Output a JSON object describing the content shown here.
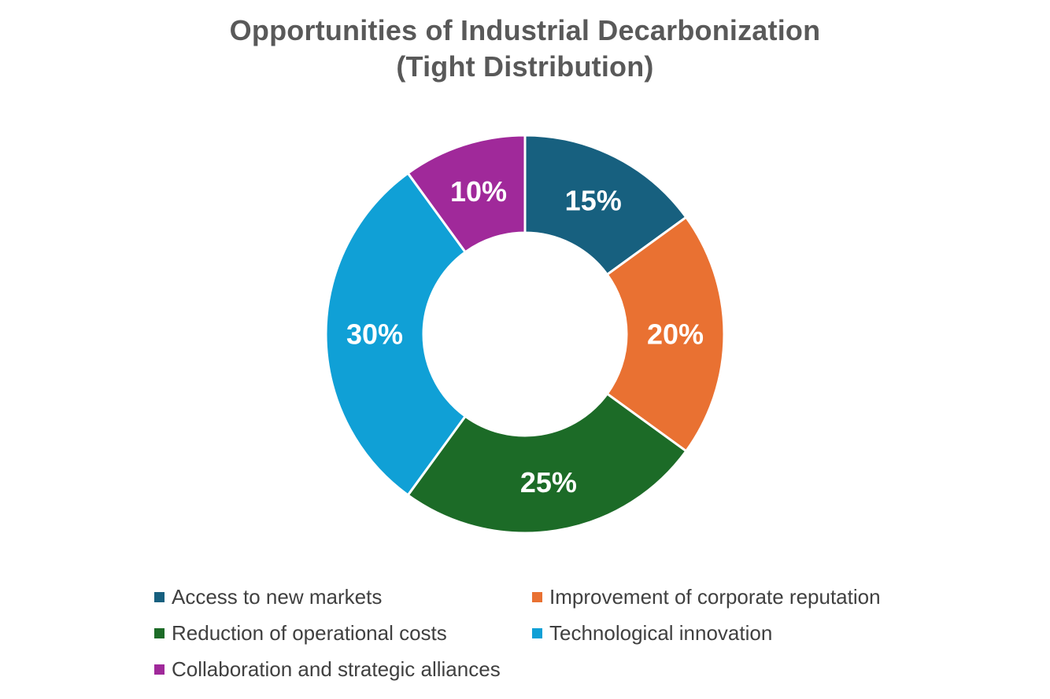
{
  "chart_data": {
    "type": "pie",
    "subtype": "donut",
    "title": "Opportunities of Industrial Decarbonization",
    "subtitle": "(Tight Distribution)",
    "categories": [
      "Access to new markets",
      "Improvement of corporate reputation",
      "Reduction of operational costs",
      "Technological innovation",
      "Collaboration and strategic alliances"
    ],
    "values": [
      15,
      20,
      25,
      30,
      10
    ],
    "data_labels": [
      "15%",
      "20%",
      "25%",
      "30%",
      "10%"
    ],
    "colors": [
      "#17607f",
      "#e97132",
      "#1c6b27",
      "#10a0d6",
      "#a0299a"
    ],
    "legend_position": "bottom"
  }
}
